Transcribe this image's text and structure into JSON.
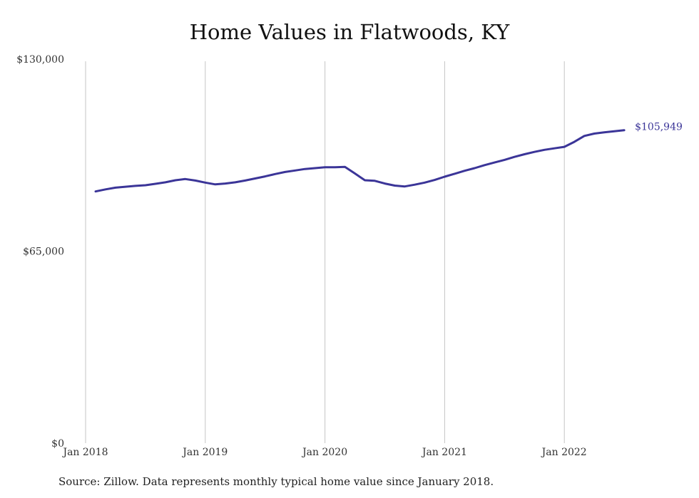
{
  "chart_data": {
    "type": "line",
    "title": "Home Values in Flatwoods, KY",
    "xlabel": "",
    "ylabel": "",
    "x_ticks": [
      "Jan 2018",
      "Jan 2019",
      "Jan 2020",
      "Jan 2021",
      "Jan 2022"
    ],
    "y_ticks": [
      "$0",
      "$65,000",
      "$130,000"
    ],
    "ylim": [
      0,
      130000
    ],
    "xlim": [
      "2017-12",
      "2022-08"
    ],
    "grid": "vertical",
    "color": "#3b3598",
    "end_label": "$105,949",
    "series": [
      {
        "x": [
          "2018-02",
          "2018-03",
          "2018-04",
          "2018-05",
          "2018-06",
          "2018-07",
          "2018-08",
          "2018-09",
          "2018-10",
          "2018-11",
          "2018-12",
          "2019-01",
          "2019-02",
          "2019-03",
          "2019-04",
          "2019-05",
          "2019-06",
          "2019-07",
          "2019-08",
          "2019-09",
          "2019-10",
          "2019-11",
          "2019-12",
          "2020-01",
          "2020-02",
          "2020-03",
          "2020-04",
          "2020-05",
          "2020-06",
          "2020-07",
          "2020-08",
          "2020-09",
          "2020-10",
          "2020-11",
          "2020-12",
          "2021-01",
          "2021-02",
          "2021-03",
          "2021-04",
          "2021-05",
          "2021-06",
          "2021-07",
          "2021-08",
          "2021-09",
          "2021-10",
          "2021-11",
          "2021-12",
          "2022-01",
          "2022-02",
          "2022-03",
          "2022-04",
          "2022-05",
          "2022-06",
          "2022-07"
        ],
        "values": [
          85200,
          85900,
          86500,
          86800,
          87100,
          87300,
          87800,
          88300,
          89000,
          89400,
          88900,
          88200,
          87600,
          87900,
          88300,
          88900,
          89600,
          90300,
          91100,
          91800,
          92300,
          92800,
          93100,
          93400,
          93400,
          93500,
          91300,
          89000,
          88800,
          87900,
          87200,
          86900,
          87500,
          88200,
          89100,
          90200,
          91200,
          92200,
          93100,
          94100,
          95000,
          95900,
          96900,
          97800,
          98600,
          99300,
          99800,
          100300,
          102000,
          104000,
          104800,
          105200,
          105600,
          105949
        ]
      }
    ]
  },
  "source": "Source: Zillow. Data represents monthly typical home value since January 2018."
}
